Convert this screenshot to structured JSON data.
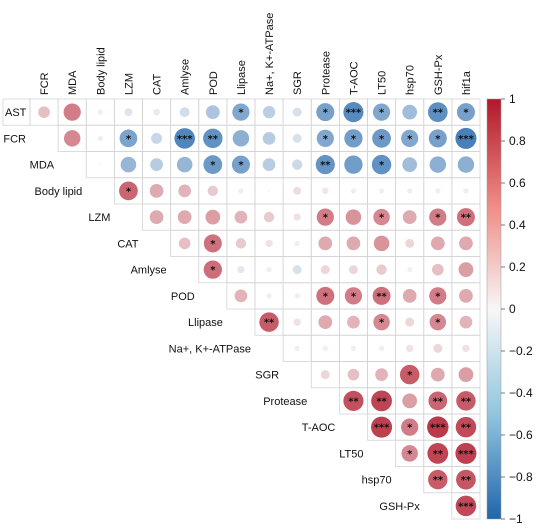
{
  "chart_data": {
    "type": "heatmap",
    "style": "correlation-circle, upper-triangle",
    "variables": [
      "AST",
      "FCR",
      "MDA",
      "Body lipid",
      "LZM",
      "CAT",
      "Amlyse",
      "POD",
      "Llipase",
      "Na+, K+-ATPase",
      "SGR",
      "Protease",
      "T-AOC",
      "LT50",
      "hsp70",
      "GSH-Px",
      "hif1a"
    ],
    "color_scale": {
      "min": -1,
      "max": 1,
      "low_color": "#2166ac",
      "mid_color": "#f7f7f7",
      "high_color": "#b2182b",
      "ticks": [
        1,
        0.8,
        0.6,
        0.4,
        0.2,
        0,
        -0.2,
        -0.4,
        -0.6,
        -0.8,
        -1
      ],
      "tick_labels": [
        "1",
        "0.8",
        "0.6",
        "0.4",
        "0.2",
        "0",
        "−0.2",
        "−0.4",
        "−0.6",
        "−0.8",
        "−1"
      ]
    },
    "significance_marks": {
      "1": "*",
      "2": "**",
      "3": "***"
    },
    "rows": [
      {
        "row": "AST",
        "cells": [
          {
            "col": "FCR",
            "r": 0.25,
            "sig": 0
          },
          {
            "col": "MDA",
            "r": 0.55,
            "sig": 0
          },
          {
            "col": "Body lipid",
            "r": 0.05,
            "sig": 0
          },
          {
            "col": "LZM",
            "r": -0.12,
            "sig": 0
          },
          {
            "col": "CAT",
            "r": -0.08,
            "sig": 0
          },
          {
            "col": "Amlyse",
            "r": -0.18,
            "sig": 0
          },
          {
            "col": "POD",
            "r": -0.35,
            "sig": 0
          },
          {
            "col": "Llipase",
            "r": -0.55,
            "sig": 1
          },
          {
            "col": "Na+, K+-ATPase",
            "r": -0.28,
            "sig": 0
          },
          {
            "col": "SGR",
            "r": -0.15,
            "sig": 0
          },
          {
            "col": "Protease",
            "r": -0.6,
            "sig": 1
          },
          {
            "col": "T-AOC",
            "r": -0.75,
            "sig": 3
          },
          {
            "col": "LT50",
            "r": -0.55,
            "sig": 1
          },
          {
            "col": "hsp70",
            "r": -0.4,
            "sig": 0
          },
          {
            "col": "GSH-Px",
            "r": -0.72,
            "sig": 2
          },
          {
            "col": "hif1a",
            "r": -0.6,
            "sig": 1
          }
        ]
      },
      {
        "row": "FCR",
        "cells": [
          {
            "col": "MDA",
            "r": 0.5,
            "sig": 0
          },
          {
            "col": "Body lipid",
            "r": -0.05,
            "sig": 0
          },
          {
            "col": "LZM",
            "r": -0.58,
            "sig": 1
          },
          {
            "col": "CAT",
            "r": -0.22,
            "sig": 0
          },
          {
            "col": "Amlyse",
            "r": -0.78,
            "sig": 3
          },
          {
            "col": "POD",
            "r": -0.7,
            "sig": 2
          },
          {
            "col": "Llipase",
            "r": -0.5,
            "sig": 0
          },
          {
            "col": "Na+, K+-ATPase",
            "r": -0.3,
            "sig": 0
          },
          {
            "col": "SGR",
            "r": -0.15,
            "sig": 0
          },
          {
            "col": "Protease",
            "r": -0.55,
            "sig": 1
          },
          {
            "col": "T-AOC",
            "r": -0.62,
            "sig": 1
          },
          {
            "col": "LT50",
            "r": -0.65,
            "sig": 1
          },
          {
            "col": "hsp70",
            "r": -0.55,
            "sig": 1
          },
          {
            "col": "GSH-Px",
            "r": -0.6,
            "sig": 1
          },
          {
            "col": "hif1a",
            "r": -0.82,
            "sig": 3
          }
        ]
      },
      {
        "row": "MDA",
        "cells": [
          {
            "col": "Body lipid",
            "r": 0.0,
            "sig": 0
          },
          {
            "col": "LZM",
            "r": -0.45,
            "sig": 0
          },
          {
            "col": "CAT",
            "r": -0.3,
            "sig": 0
          },
          {
            "col": "Amlyse",
            "r": -0.45,
            "sig": 0
          },
          {
            "col": "POD",
            "r": -0.65,
            "sig": 1
          },
          {
            "col": "Llipase",
            "r": -0.6,
            "sig": 1
          },
          {
            "col": "Na+, K+-ATPase",
            "r": -0.3,
            "sig": 0
          },
          {
            "col": "SGR",
            "r": -0.2,
            "sig": 0
          },
          {
            "col": "Protease",
            "r": -0.68,
            "sig": 2
          },
          {
            "col": "T-AOC",
            "r": -0.62,
            "sig": 0
          },
          {
            "col": "LT50",
            "r": -0.7,
            "sig": 1
          },
          {
            "col": "hsp70",
            "r": -0.4,
            "sig": 0
          },
          {
            "col": "GSH-Px",
            "r": -0.5,
            "sig": 0
          },
          {
            "col": "hif1a",
            "r": -0.5,
            "sig": 0
          }
        ]
      },
      {
        "row": "Body lipid",
        "cells": [
          {
            "col": "LZM",
            "r": 0.65,
            "sig": 1
          },
          {
            "col": "CAT",
            "r": 0.35,
            "sig": 0
          },
          {
            "col": "Amlyse",
            "r": 0.3,
            "sig": 0
          },
          {
            "col": "POD",
            "r": 0.2,
            "sig": 0
          },
          {
            "col": "Llipase",
            "r": 0.05,
            "sig": 0
          },
          {
            "col": "Na+, K+-ATPase",
            "r": 0.0,
            "sig": 0
          },
          {
            "col": "SGR",
            "r": 0.12,
            "sig": 0
          },
          {
            "col": "Protease",
            "r": 0.08,
            "sig": 0
          },
          {
            "col": "T-AOC",
            "r": 0.05,
            "sig": 0
          },
          {
            "col": "LT50",
            "r": 0.05,
            "sig": 0
          },
          {
            "col": "hsp70",
            "r": 0.05,
            "sig": 0
          },
          {
            "col": "GSH-Px",
            "r": 0.05,
            "sig": 0
          },
          {
            "col": "hif1a",
            "r": 0.05,
            "sig": 0
          }
        ]
      },
      {
        "row": "LZM",
        "cells": [
          {
            "col": "CAT",
            "r": 0.35,
            "sig": 0
          },
          {
            "col": "Amlyse",
            "r": 0.35,
            "sig": 0
          },
          {
            "col": "POD",
            "r": 0.4,
            "sig": 0
          },
          {
            "col": "Llipase",
            "r": 0.3,
            "sig": 0
          },
          {
            "col": "Na+, K+-ATPase",
            "r": 0.2,
            "sig": 0
          },
          {
            "col": "SGR",
            "r": 0.1,
            "sig": 0
          },
          {
            "col": "Protease",
            "r": 0.55,
            "sig": 1
          },
          {
            "col": "T-AOC",
            "r": 0.45,
            "sig": 0
          },
          {
            "col": "LT50",
            "r": 0.5,
            "sig": 1
          },
          {
            "col": "hsp70",
            "r": 0.35,
            "sig": 0
          },
          {
            "col": "GSH-Px",
            "r": 0.55,
            "sig": 1
          },
          {
            "col": "hif1a",
            "r": 0.6,
            "sig": 2
          }
        ]
      },
      {
        "row": "CAT",
        "cells": [
          {
            "col": "Amlyse",
            "r": 0.25,
            "sig": 0
          },
          {
            "col": "POD",
            "r": 0.6,
            "sig": 1
          },
          {
            "col": "Llipase",
            "r": 0.2,
            "sig": 0
          },
          {
            "col": "Na+, K+-ATPase",
            "r": 0.1,
            "sig": 0
          },
          {
            "col": "SGR",
            "r": 0.05,
            "sig": 0
          },
          {
            "col": "Protease",
            "r": 0.35,
            "sig": 0
          },
          {
            "col": "T-AOC",
            "r": 0.35,
            "sig": 0
          },
          {
            "col": "LT50",
            "r": 0.45,
            "sig": 0
          },
          {
            "col": "hsp70",
            "r": 0.15,
            "sig": 0
          },
          {
            "col": "GSH-Px",
            "r": 0.35,
            "sig": 0
          },
          {
            "col": "hif1a",
            "r": 0.35,
            "sig": 0
          }
        ]
      },
      {
        "row": "Amlyse",
        "cells": [
          {
            "col": "POD",
            "r": 0.62,
            "sig": 1
          },
          {
            "col": "Llipase",
            "r": -0.1,
            "sig": 0
          },
          {
            "col": "Na+, K+-ATPase",
            "r": 0.05,
            "sig": 0
          },
          {
            "col": "SGR",
            "r": -0.15,
            "sig": 0
          },
          {
            "col": "Protease",
            "r": 0.15,
            "sig": 0
          },
          {
            "col": "T-AOC",
            "r": 0.15,
            "sig": 0
          },
          {
            "col": "LT50",
            "r": 0.2,
            "sig": 0
          },
          {
            "col": "hsp70",
            "r": 0.05,
            "sig": 0
          },
          {
            "col": "GSH-Px",
            "r": 0.25,
            "sig": 0
          },
          {
            "col": "hif1a",
            "r": 0.4,
            "sig": 0
          }
        ]
      },
      {
        "row": "POD",
        "cells": [
          {
            "col": "Llipase",
            "r": 0.3,
            "sig": 0
          },
          {
            "col": "Na+, K+-ATPase",
            "r": 0.05,
            "sig": 0
          },
          {
            "col": "SGR",
            "r": 0.05,
            "sig": 0
          },
          {
            "col": "Protease",
            "r": 0.6,
            "sig": 1
          },
          {
            "col": "T-AOC",
            "r": 0.55,
            "sig": 1
          },
          {
            "col": "LT50",
            "r": 0.6,
            "sig": 2
          },
          {
            "col": "hsp70",
            "r": 0.35,
            "sig": 0
          },
          {
            "col": "GSH-Px",
            "r": 0.55,
            "sig": 1
          },
          {
            "col": "hif1a",
            "r": 0.35,
            "sig": 0
          }
        ]
      },
      {
        "row": "Llipase",
        "cells": [
          {
            "col": "Na+, K+-ATPase",
            "r": 0.7,
            "sig": 2
          },
          {
            "col": "SGR",
            "r": 0.1,
            "sig": 0
          },
          {
            "col": "Protease",
            "r": 0.35,
            "sig": 0
          },
          {
            "col": "T-AOC",
            "r": 0.3,
            "sig": 0
          },
          {
            "col": "LT50",
            "r": 0.5,
            "sig": 1
          },
          {
            "col": "hsp70",
            "r": 0.15,
            "sig": 0
          },
          {
            "col": "GSH-Px",
            "r": 0.5,
            "sig": 1
          },
          {
            "col": "hif1a",
            "r": 0.3,
            "sig": 0
          }
        ]
      },
      {
        "row": "Na+, K+-ATPase",
        "cells": [
          {
            "col": "SGR",
            "r": 0.05,
            "sig": 0
          },
          {
            "col": "Protease",
            "r": 0.05,
            "sig": 0
          },
          {
            "col": "T-AOC",
            "r": 0.05,
            "sig": 0
          },
          {
            "col": "LT50",
            "r": 0.05,
            "sig": 0
          },
          {
            "col": "hsp70",
            "r": 0.1,
            "sig": 0
          },
          {
            "col": "GSH-Px",
            "r": 0.15,
            "sig": 0
          },
          {
            "col": "hif1a",
            "r": 0.1,
            "sig": 0
          }
        ]
      },
      {
        "row": "SGR",
        "cells": [
          {
            "col": "Protease",
            "r": 0.15,
            "sig": 0
          },
          {
            "col": "T-AOC",
            "r": 0.25,
            "sig": 0
          },
          {
            "col": "LT50",
            "r": 0.3,
            "sig": 0
          },
          {
            "col": "hsp70",
            "r": 0.7,
            "sig": 1
          },
          {
            "col": "GSH-Px",
            "r": 0.35,
            "sig": 0
          },
          {
            "col": "hif1a",
            "r": 0.4,
            "sig": 0
          }
        ]
      },
      {
        "row": "Protease",
        "cells": [
          {
            "col": "T-AOC",
            "r": 0.75,
            "sig": 2
          },
          {
            "col": "LT50",
            "r": 0.8,
            "sig": 2
          },
          {
            "col": "hsp70",
            "r": 0.4,
            "sig": 0
          },
          {
            "col": "GSH-Px",
            "r": 0.65,
            "sig": 2
          },
          {
            "col": "hif1a",
            "r": 0.7,
            "sig": 2
          }
        ]
      },
      {
        "row": "T-AOC",
        "cells": [
          {
            "col": "LT50",
            "r": 0.82,
            "sig": 3
          },
          {
            "col": "hsp70",
            "r": 0.55,
            "sig": 1
          },
          {
            "col": "GSH-Px",
            "r": 0.85,
            "sig": 3
          },
          {
            "col": "hif1a",
            "r": 0.78,
            "sig": 2
          }
        ]
      },
      {
        "row": "LT50",
        "cells": [
          {
            "col": "hsp70",
            "r": 0.5,
            "sig": 1
          },
          {
            "col": "GSH-Px",
            "r": 0.8,
            "sig": 2
          },
          {
            "col": "hif1a",
            "r": 0.82,
            "sig": 3
          }
        ]
      },
      {
        "row": "hsp70",
        "cells": [
          {
            "col": "GSH-Px",
            "r": 0.7,
            "sig": 2
          },
          {
            "col": "hif1a",
            "r": 0.72,
            "sig": 2
          }
        ]
      },
      {
        "row": "GSH-Px",
        "cells": [
          {
            "col": "hif1a",
            "r": 0.78,
            "sig": 3
          }
        ]
      }
    ]
  }
}
